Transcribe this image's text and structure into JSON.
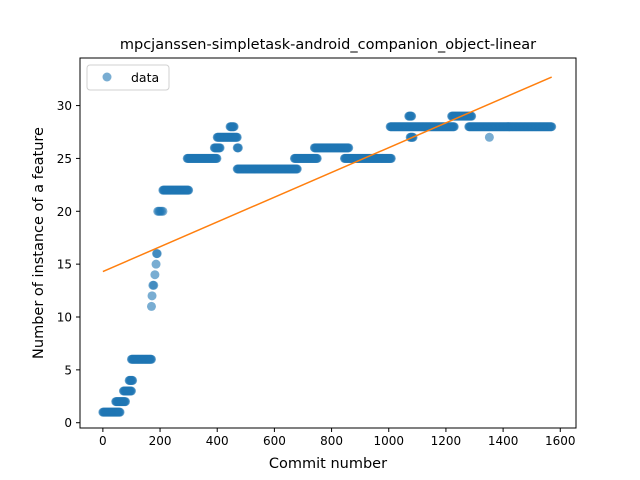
{
  "chart_data": {
    "type": "scatter",
    "title": "mpcjanssen-simpletask-android_companion_object-linear",
    "xlabel": "Commit number",
    "ylabel": "Number of instance of a feature",
    "xlim": [
      -80,
      1655
    ],
    "ylim": [
      -0.5,
      34.5
    ],
    "xticks": [
      0,
      200,
      400,
      600,
      800,
      1000,
      1200,
      1400,
      1600
    ],
    "yticks": [
      0,
      5,
      10,
      15,
      20,
      25,
      30
    ],
    "grid": false,
    "legend": {
      "placement": "top-left",
      "entries": [
        "data"
      ]
    },
    "colors": {
      "data": "#1f77b4",
      "fit": "#ff7f0e"
    },
    "series": [
      {
        "name": "data",
        "kind": "scatter",
        "runs": [
          {
            "x0": 0,
            "x1": 60,
            "y": 1
          },
          {
            "x0": 45,
            "x1": 80,
            "y": 2
          },
          {
            "x0": 72,
            "x1": 100,
            "y": 3
          },
          {
            "x0": 92,
            "x1": 105,
            "y": 4
          },
          {
            "x0": 100,
            "x1": 170,
            "y": 6
          }
        ],
        "points": [
          [
            170,
            11
          ],
          [
            172,
            12
          ],
          [
            175,
            13
          ],
          [
            178,
            13
          ],
          [
            182,
            14
          ],
          [
            186,
            15
          ],
          [
            188,
            16
          ],
          [
            190,
            16
          ],
          [
            192,
            20
          ],
          [
            196,
            20
          ],
          [
            200,
            20
          ],
          [
            205,
            20
          ],
          [
            210,
            20
          ]
        ],
        "runs2": [
          {
            "x0": 210,
            "x1": 300,
            "y": 22
          },
          {
            "x0": 295,
            "x1": 400,
            "y": 25
          },
          {
            "x0": 390,
            "x1": 410,
            "y": 26
          },
          {
            "x0": 400,
            "x1": 470,
            "y": 27
          },
          {
            "x0": 445,
            "x1": 460,
            "y": 28
          },
          {
            "x0": 470,
            "x1": 475,
            "y": 26
          },
          {
            "x0": 470,
            "x1": 680,
            "y": 24
          },
          {
            "x0": 670,
            "x1": 750,
            "y": 25
          },
          {
            "x0": 740,
            "x1": 860,
            "y": 26
          },
          {
            "x0": 845,
            "x1": 1010,
            "y": 25
          },
          {
            "x0": 1005,
            "x1": 1230,
            "y": 28
          },
          {
            "x0": 1070,
            "x1": 1080,
            "y": 29
          },
          {
            "x0": 1075,
            "x1": 1085,
            "y": 27
          },
          {
            "x0": 1220,
            "x1": 1290,
            "y": 29
          },
          {
            "x0": 1280,
            "x1": 1570,
            "y": 28
          }
        ],
        "extra_points": [
          [
            1352,
            27
          ]
        ]
      },
      {
        "name": "",
        "kind": "line",
        "x": [
          0,
          1570
        ],
        "y": [
          14.3,
          32.7
        ]
      }
    ]
  }
}
